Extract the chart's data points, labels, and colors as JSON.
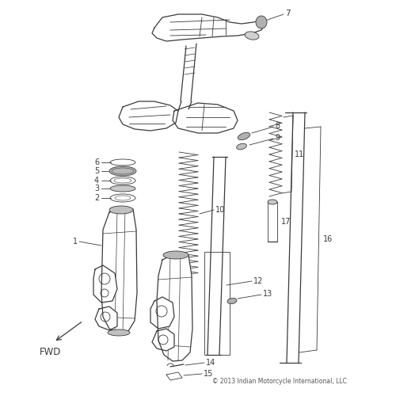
{
  "bg_color": "#ffffff",
  "line_color": "#3a3a3a",
  "text_color": "#3a3a3a",
  "copyright": "© 2013 Indian Motorcycle International, LLC",
  "fwd_label": "FWD",
  "fig_width": 5.0,
  "fig_height": 5.0,
  "dpi": 100
}
